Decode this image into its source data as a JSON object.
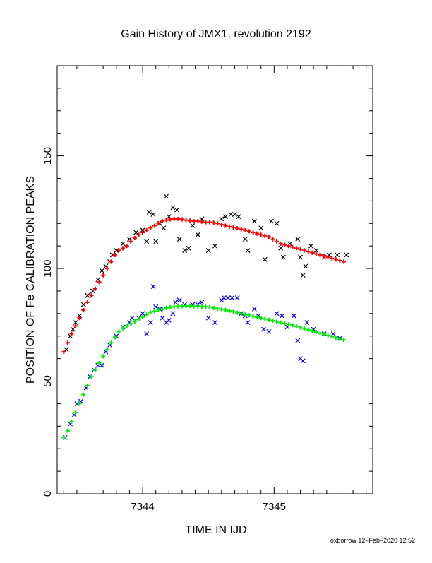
{
  "chart_data": {
    "type": "scatter",
    "title": "Gain History of JMX1, revolution 2192",
    "xlabel": "TIME IN IJD",
    "ylabel": "POSITION OF Fe CALIBRATION PEAKS",
    "xlim": [
      7343.35,
      7345.75
    ],
    "ylim": [
      0,
      190
    ],
    "x_ticks": [
      {
        "value": 7344,
        "label": "7344"
      },
      {
        "value": 7345,
        "label": "7345"
      }
    ],
    "y_ticks": [
      {
        "value": 0,
        "label": "0"
      },
      {
        "value": 50,
        "label": "50"
      },
      {
        "value": 100,
        "label": "100"
      },
      {
        "value": 150,
        "label": "150"
      }
    ],
    "grid": false,
    "series": [
      {
        "marker": "x",
        "color": "#000000",
        "points": [
          [
            7343.42,
            64
          ],
          [
            7343.45,
            70
          ],
          [
            7343.47,
            73
          ],
          [
            7343.49,
            76
          ],
          [
            7343.52,
            79
          ],
          [
            7343.55,
            84
          ],
          [
            7343.58,
            88
          ],
          [
            7343.62,
            90
          ],
          [
            7343.66,
            95
          ],
          [
            7343.69,
            99
          ],
          [
            7343.72,
            101
          ],
          [
            7343.75,
            103
          ],
          [
            7343.77,
            106
          ],
          [
            7343.8,
            108
          ],
          [
            7343.85,
            111
          ],
          [
            7343.9,
            113
          ],
          [
            7343.95,
            116
          ],
          [
            7344.0,
            117
          ],
          [
            7344.03,
            112
          ],
          [
            7344.05,
            125
          ],
          [
            7344.08,
            124
          ],
          [
            7344.1,
            112
          ],
          [
            7344.13,
            120
          ],
          [
            7344.16,
            118
          ],
          [
            7344.18,
            132
          ],
          [
            7344.2,
            123
          ],
          [
            7344.23,
            127
          ],
          [
            7344.26,
            126
          ],
          [
            7344.28,
            113
          ],
          [
            7344.32,
            108
          ],
          [
            7344.35,
            109
          ],
          [
            7344.38,
            119
          ],
          [
            7344.42,
            115
          ],
          [
            7344.45,
            122
          ],
          [
            7344.5,
            108
          ],
          [
            7344.55,
            110
          ],
          [
            7344.6,
            122
          ],
          [
            7344.63,
            123
          ],
          [
            7344.67,
            124
          ],
          [
            7344.7,
            124
          ],
          [
            7344.73,
            123
          ],
          [
            7344.78,
            113
          ],
          [
            7344.8,
            108
          ],
          [
            7344.85,
            121
          ],
          [
            7344.9,
            118
          ],
          [
            7344.93,
            104
          ],
          [
            7344.98,
            121
          ],
          [
            7345.02,
            120
          ],
          [
            7345.05,
            109
          ],
          [
            7345.07,
            105
          ],
          [
            7345.12,
            111
          ],
          [
            7345.18,
            113
          ],
          [
            7345.2,
            105
          ],
          [
            7345.22,
            97
          ],
          [
            7345.24,
            101
          ],
          [
            7345.28,
            110
          ],
          [
            7345.32,
            108
          ],
          [
            7345.38,
            105
          ],
          [
            7345.42,
            106
          ],
          [
            7345.48,
            106
          ],
          [
            7345.55,
            106
          ]
        ]
      },
      {
        "marker": "+",
        "color": "#ff0000",
        "points": [
          [
            7343.4,
            63
          ],
          [
            7343.43,
            67
          ],
          [
            7343.46,
            71
          ],
          [
            7343.49,
            74.5
          ],
          [
            7343.52,
            78
          ],
          [
            7343.55,
            81.5
          ],
          [
            7343.58,
            85
          ],
          [
            7343.61,
            88
          ],
          [
            7343.64,
            91
          ],
          [
            7343.67,
            94
          ],
          [
            7343.7,
            97
          ],
          [
            7343.73,
            100
          ],
          [
            7343.76,
            103
          ],
          [
            7343.79,
            106
          ],
          [
            7343.82,
            108
          ],
          [
            7343.85,
            109
          ],
          [
            7343.88,
            110
          ],
          [
            7343.91,
            112
          ],
          [
            7343.94,
            113.5
          ],
          [
            7343.97,
            115
          ],
          [
            7344.0,
            116
          ],
          [
            7344.03,
            117
          ],
          [
            7344.06,
            118
          ],
          [
            7344.09,
            119
          ],
          [
            7344.12,
            120
          ],
          [
            7344.15,
            121
          ],
          [
            7344.18,
            121.5
          ],
          [
            7344.21,
            121.8
          ],
          [
            7344.24,
            122
          ],
          [
            7344.27,
            122
          ],
          [
            7344.3,
            121.8
          ],
          [
            7344.33,
            121.5
          ],
          [
            7344.36,
            121.2
          ],
          [
            7344.39,
            121
          ],
          [
            7344.42,
            121
          ],
          [
            7344.45,
            120.8
          ],
          [
            7344.48,
            120.5
          ],
          [
            7344.51,
            120.5
          ],
          [
            7344.54,
            120.3
          ],
          [
            7344.57,
            120
          ],
          [
            7344.6,
            119.5
          ],
          [
            7344.63,
            119
          ],
          [
            7344.66,
            118.6
          ],
          [
            7344.69,
            118.2
          ],
          [
            7344.72,
            117.8
          ],
          [
            7344.75,
            117.4
          ],
          [
            7344.78,
            117
          ],
          [
            7344.81,
            116.5
          ],
          [
            7344.84,
            116
          ],
          [
            7344.87,
            115.5
          ],
          [
            7344.9,
            115
          ],
          [
            7344.93,
            114.5
          ],
          [
            7344.96,
            114
          ],
          [
            7344.99,
            113
          ],
          [
            7345.02,
            112
          ],
          [
            7345.05,
            111
          ],
          [
            7345.08,
            110.5
          ],
          [
            7345.11,
            110
          ],
          [
            7345.14,
            109.5
          ],
          [
            7345.17,
            109
          ],
          [
            7345.2,
            108.5
          ],
          [
            7345.23,
            108
          ],
          [
            7345.26,
            107.5
          ],
          [
            7345.29,
            107
          ],
          [
            7345.32,
            106.5
          ],
          [
            7345.35,
            106
          ],
          [
            7345.38,
            105.5
          ],
          [
            7345.41,
            105
          ],
          [
            7345.44,
            104.5
          ],
          [
            7345.47,
            104
          ],
          [
            7345.5,
            103.5
          ],
          [
            7345.53,
            103
          ]
        ]
      },
      {
        "marker": "x",
        "color": "#0000ff",
        "points": [
          [
            7343.41,
            25
          ],
          [
            7343.45,
            31
          ],
          [
            7343.48,
            35
          ],
          [
            7343.5,
            40
          ],
          [
            7343.53,
            41
          ],
          [
            7343.57,
            47
          ],
          [
            7343.6,
            52
          ],
          [
            7343.63,
            55
          ],
          [
            7343.66,
            57
          ],
          [
            7343.69,
            57
          ],
          [
            7343.72,
            63
          ],
          [
            7343.75,
            66
          ],
          [
            7343.8,
            70
          ],
          [
            7343.85,
            74
          ],
          [
            7343.9,
            76
          ],
          [
            7343.92,
            78
          ],
          [
            7343.97,
            78
          ],
          [
            7344.0,
            80
          ],
          [
            7344.03,
            71
          ],
          [
            7344.06,
            76
          ],
          [
            7344.08,
            92
          ],
          [
            7344.1,
            83
          ],
          [
            7344.13,
            82
          ],
          [
            7344.15,
            78
          ],
          [
            7344.18,
            76
          ],
          [
            7344.2,
            77
          ],
          [
            7344.23,
            80
          ],
          [
            7344.25,
            85
          ],
          [
            7344.28,
            86
          ],
          [
            7344.32,
            84
          ],
          [
            7344.38,
            84
          ],
          [
            7344.42,
            84
          ],
          [
            7344.45,
            85
          ],
          [
            7344.5,
            78
          ],
          [
            7344.55,
            76
          ],
          [
            7344.6,
            86
          ],
          [
            7344.62,
            87
          ],
          [
            7344.65,
            87
          ],
          [
            7344.68,
            87
          ],
          [
            7344.72,
            87
          ],
          [
            7344.75,
            80
          ],
          [
            7344.78,
            79
          ],
          [
            7344.8,
            76
          ],
          [
            7344.85,
            82
          ],
          [
            7344.88,
            79
          ],
          [
            7344.92,
            73
          ],
          [
            7344.96,
            72
          ],
          [
            7345.02,
            80
          ],
          [
            7345.06,
            79
          ],
          [
            7345.1,
            74
          ],
          [
            7345.15,
            79
          ],
          [
            7345.18,
            68
          ],
          [
            7345.2,
            60
          ],
          [
            7345.22,
            59
          ],
          [
            7345.25,
            76
          ],
          [
            7345.3,
            73
          ],
          [
            7345.38,
            71
          ],
          [
            7345.45,
            71
          ],
          [
            7345.5,
            69
          ]
        ]
      },
      {
        "marker": "+",
        "color": "#00ee00",
        "points": [
          [
            7343.4,
            25
          ],
          [
            7343.43,
            28
          ],
          [
            7343.46,
            32
          ],
          [
            7343.49,
            36
          ],
          [
            7343.52,
            40
          ],
          [
            7343.55,
            44
          ],
          [
            7343.58,
            48
          ],
          [
            7343.61,
            52
          ],
          [
            7343.64,
            55
          ],
          [
            7343.67,
            58
          ],
          [
            7343.7,
            61
          ],
          [
            7343.73,
            64
          ],
          [
            7343.76,
            67
          ],
          [
            7343.79,
            69.5
          ],
          [
            7343.82,
            72
          ],
          [
            7343.85,
            73.5
          ],
          [
            7343.88,
            74.5
          ],
          [
            7343.91,
            75.5
          ],
          [
            7343.94,
            76.5
          ],
          [
            7343.97,
            77.5
          ],
          [
            7344.0,
            78.5
          ],
          [
            7344.03,
            79.5
          ],
          [
            7344.06,
            80.5
          ],
          [
            7344.09,
            81
          ],
          [
            7344.12,
            81.5
          ],
          [
            7344.15,
            82
          ],
          [
            7344.18,
            82.5
          ],
          [
            7344.21,
            82.8
          ],
          [
            7344.24,
            83
          ],
          [
            7344.27,
            83.2
          ],
          [
            7344.3,
            83.3
          ],
          [
            7344.33,
            83.4
          ],
          [
            7344.36,
            83.4
          ],
          [
            7344.39,
            83.3
          ],
          [
            7344.42,
            83.2
          ],
          [
            7344.45,
            83.1
          ],
          [
            7344.48,
            83
          ],
          [
            7344.51,
            82.8
          ],
          [
            7344.54,
            82.5
          ],
          [
            7344.57,
            82.2
          ],
          [
            7344.6,
            81.9
          ],
          [
            7344.63,
            81.6
          ],
          [
            7344.66,
            81.2
          ],
          [
            7344.69,
            80.8
          ],
          [
            7344.72,
            80.4
          ],
          [
            7344.75,
            80
          ],
          [
            7344.78,
            79.6
          ],
          [
            7344.81,
            79.2
          ],
          [
            7344.84,
            78.8
          ],
          [
            7344.87,
            78.4
          ],
          [
            7344.9,
            78
          ],
          [
            7344.93,
            77.6
          ],
          [
            7344.96,
            77.2
          ],
          [
            7344.99,
            76.8
          ],
          [
            7345.02,
            76.4
          ],
          [
            7345.05,
            76
          ],
          [
            7345.08,
            75.6
          ],
          [
            7345.11,
            75.2
          ],
          [
            7345.14,
            74.8
          ],
          [
            7345.17,
            74.3
          ],
          [
            7345.2,
            73.8
          ],
          [
            7345.23,
            73.3
          ],
          [
            7345.26,
            72.8
          ],
          [
            7345.29,
            72.3
          ],
          [
            7345.32,
            71.8
          ],
          [
            7345.35,
            71.3
          ],
          [
            7345.38,
            70.8
          ],
          [
            7345.41,
            70.3
          ],
          [
            7345.44,
            69.8
          ],
          [
            7345.47,
            69.3
          ],
          [
            7345.5,
            68.8
          ],
          [
            7345.53,
            68.3
          ]
        ]
      }
    ]
  },
  "footer": {
    "stamp": "oxborrow 12–Feb–2020 12:52"
  }
}
